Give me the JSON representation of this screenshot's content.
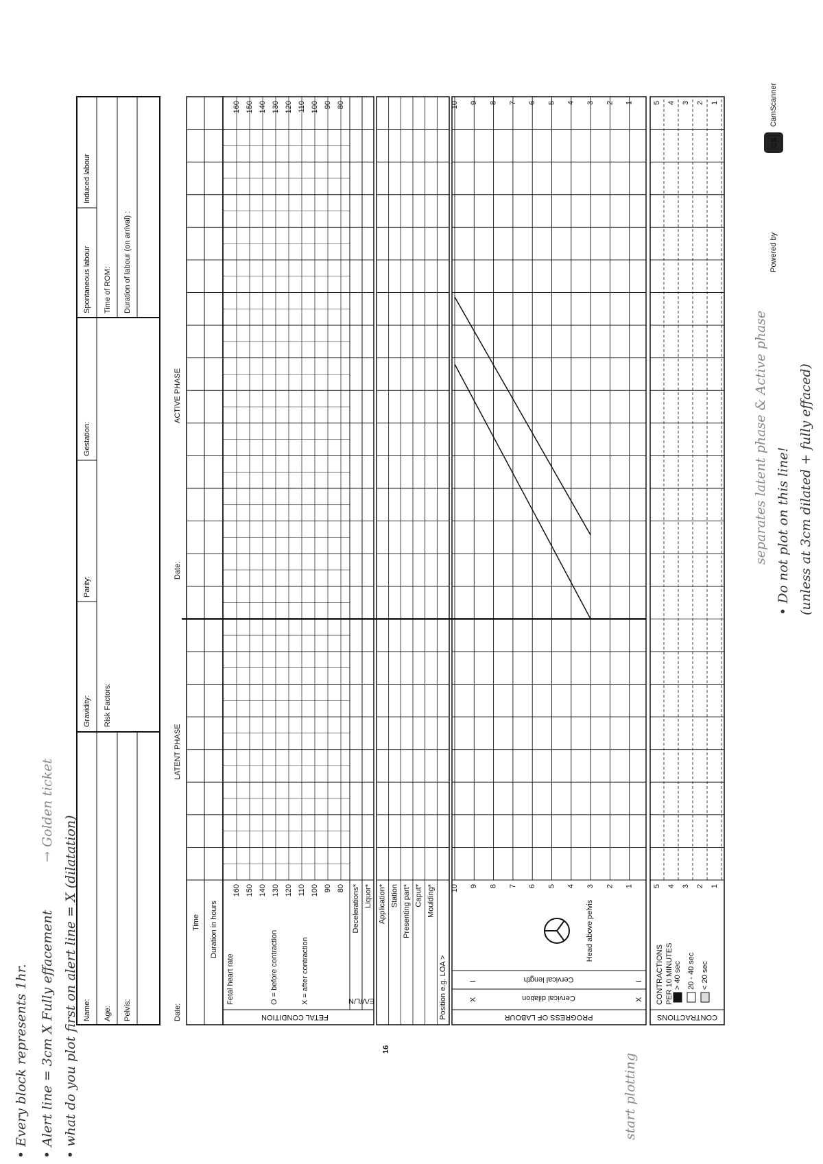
{
  "notes": [
    "• Every block represents 1hr.",
    "• Alert line = 3cm X Fully effacement",
    "→ Golden ticket",
    "• what do you plot first on alert line = X (dilatation)"
  ],
  "header": {
    "name": "Name:",
    "age": "Age:",
    "pelvis": "Pelvis:",
    "gravidity": "Gravidity:",
    "parity": "Parity:",
    "gestation": "Gestation:",
    "risk_factors": "Risk Factors:",
    "spontaneous": "Spontaneous labour",
    "induced": "Induced labour",
    "rom": "Time of ROM:",
    "duration": "Duration of labour (on arrival) :"
  },
  "partogram": {
    "date": "Date:",
    "latent": "LATENT PHASE",
    "active": "ACTIVE PHASE",
    "time": "Time",
    "duration_hours": "Duration in hours",
    "fetal_condition": "FETAL CONDITION",
    "fetal_heart_rate": "Fetal heart rate",
    "before": "O = before contraction",
    "after": "X = after contraction",
    "fhr_ticks": [
      160,
      150,
      140,
      130,
      120,
      110,
      100,
      90,
      80
    ],
    "evln": "E/V/L/N",
    "decelerations": "Decelerations*",
    "liquor": "Liquor*",
    "exam_rows": [
      "Application*",
      "Station",
      "Presenting part*",
      "Caput*",
      "Moulding*"
    ],
    "position": "Position e.g. LOA >",
    "progress": "PROGRESS OF LABOUR",
    "cervical_dilation": "Cervical dilation",
    "cervical_length": "Cervical length",
    "dilation_marker": "X",
    "length_marker": "I",
    "head_above_pelvis": "Head above pelvis",
    "dilation_ticks": [
      10,
      9,
      8,
      7,
      6,
      5,
      4,
      3,
      2,
      1
    ],
    "contractions_title": "CONTRACTIONS",
    "contractions_sub": "PER 10 MINUTES",
    "legend": [
      "> 40 sec",
      "20 - 40 sec",
      "< 20 sec"
    ],
    "contraction_ticks": [
      5,
      4,
      3,
      2,
      1
    ]
  },
  "page_number": "16",
  "start_plotting": "start plotting",
  "right_notes": [
    "separates latent phase & Active phase",
    "• Do not plot on this line!",
    "(unless at 3cm dilated + fully effaced)"
  ],
  "footer": {
    "powered": "Powered by",
    "logo": "CS",
    "brand": "CamScanner"
  }
}
